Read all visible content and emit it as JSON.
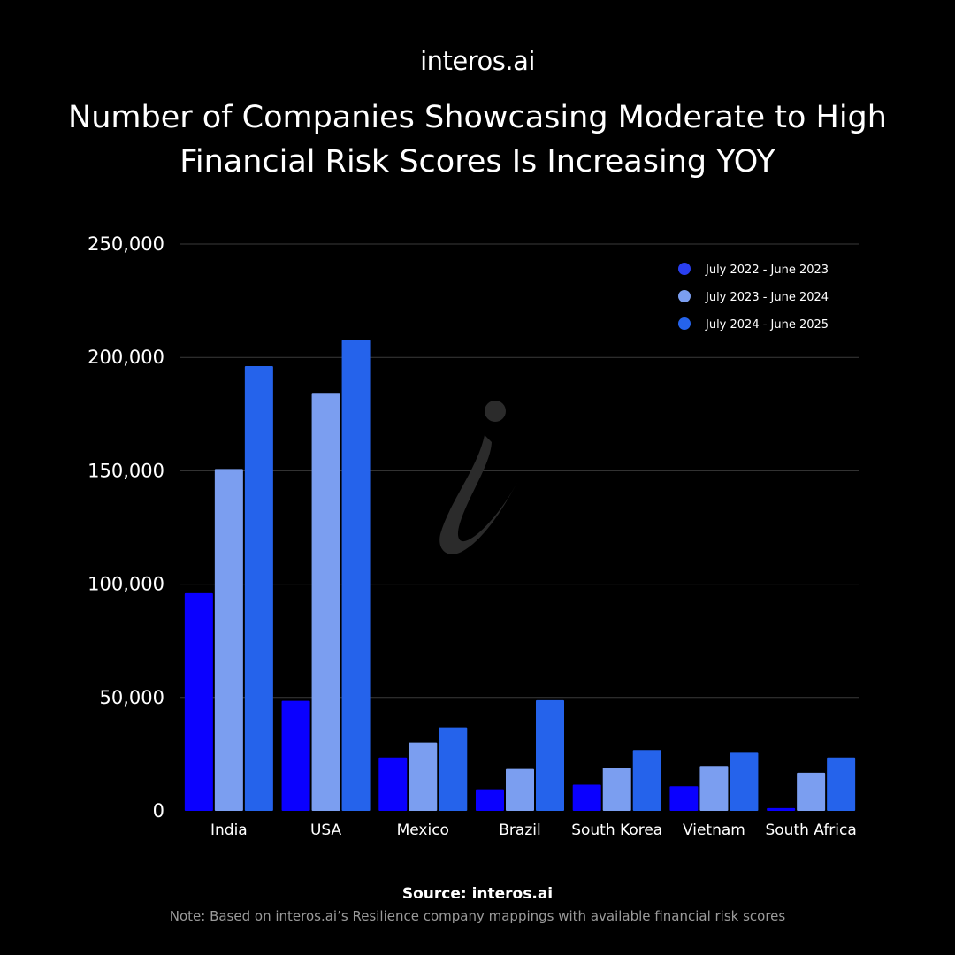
{
  "header": {
    "logo_text": "interos.ai"
  },
  "chart_data": {
    "type": "bar",
    "title": "Number of Companies Showcasing Moderate to High Financial Risk Scores Is Increasing YOY",
    "categories": [
      "India",
      "USA",
      "Mexico",
      "Brazil",
      "South Korea",
      "Vietnam",
      "South Africa"
    ],
    "series": [
      {
        "name": "July 2022 - June 2023",
        "color": "#0a00ff",
        "legend_color": "#2a3ff0",
        "values": [
          96000,
          48500,
          23500,
          9500,
          11500,
          10800,
          1200
        ]
      },
      {
        "name": "July 2023 - June 2024",
        "color": "#7b9ef0",
        "legend_color": "#7b9ef0",
        "values": [
          150800,
          184000,
          30200,
          18500,
          19000,
          19800,
          16800
        ]
      },
      {
        "name": "July 2024 - June 2025",
        "color": "#2563eb",
        "legend_color": "#2563eb",
        "values": [
          196200,
          207700,
          36800,
          48800,
          26800,
          26000,
          23500
        ]
      }
    ],
    "y_ticks": [
      "250,000",
      "200,000",
      "150,000",
      "100,000",
      "50,000",
      "0"
    ],
    "ylim": [
      0,
      250000
    ],
    "grid": true,
    "legend_position": "top-right",
    "xlabel": "",
    "ylabel": ""
  },
  "footer": {
    "source": "Source: interos.ai",
    "note": "Note: Based on interos.ai’s Resilience company mappings with available financial risk scores"
  },
  "colors": {
    "background": "#000000",
    "gridline": "#3a3a3a",
    "watermark": "#2b2b2b"
  },
  "icons": {
    "watermark": "interos-i-icon"
  }
}
